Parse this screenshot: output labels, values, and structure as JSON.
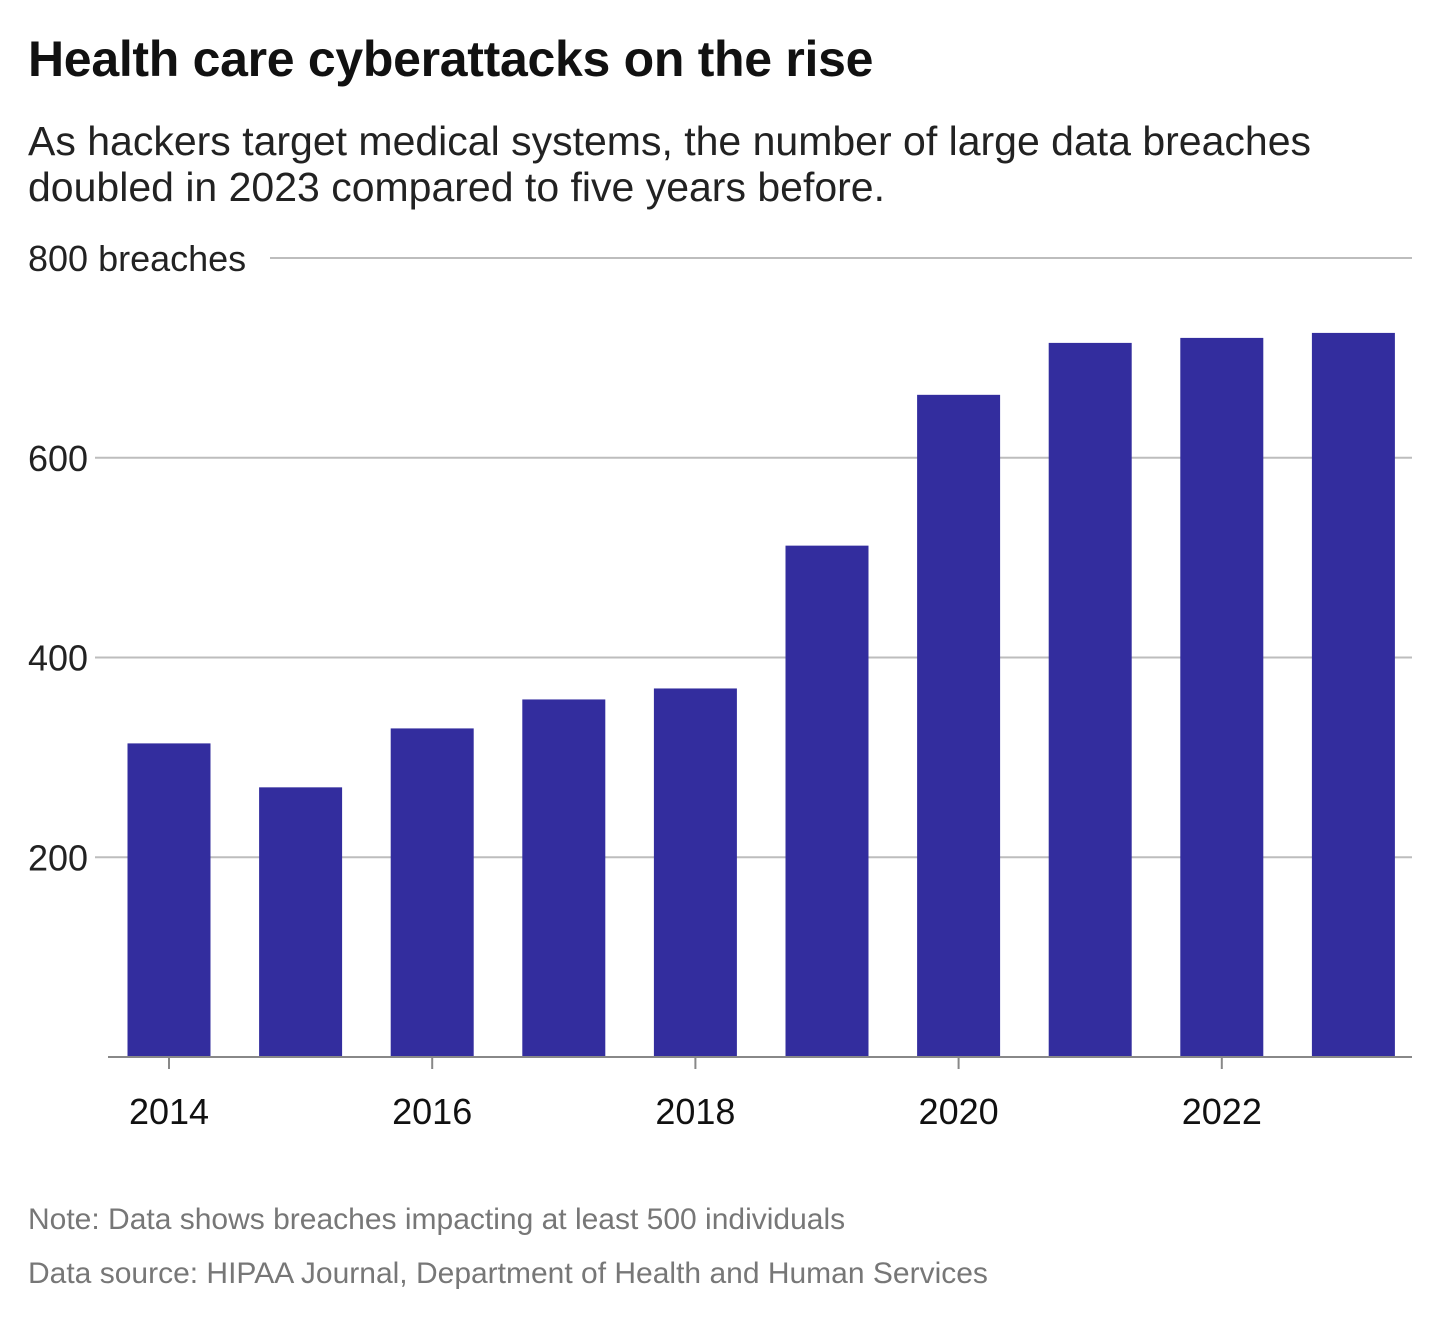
{
  "title": "Health care cyberattacks on the rise",
  "subtitle": "As hackers target medical systems, the number of large data breaches doubled in 2023 compared to five years before.",
  "note": "Note: Data shows breaches impacting at least 500 individuals",
  "source": "Data source: HIPAA Journal, Department of Health and Human Services",
  "chart_data": {
    "type": "bar",
    "title": "Health care cyberattacks on the rise",
    "categories": [
      "2014",
      "2015",
      "2016",
      "2017",
      "2018",
      "2019",
      "2020",
      "2021",
      "2022",
      "2023"
    ],
    "values": [
      314,
      270,
      329,
      358,
      369,
      512,
      663,
      715,
      720,
      725
    ],
    "ylim": [
      0,
      800
    ],
    "yticks": [
      200,
      400,
      600,
      800
    ],
    "ytick_labels": [
      "200",
      "400",
      "600",
      "800 breaches"
    ],
    "xtick_labels": [
      "2014",
      "2016",
      "2018",
      "2020",
      "2022"
    ],
    "grid": true,
    "bar_color": "#332d9e"
  }
}
